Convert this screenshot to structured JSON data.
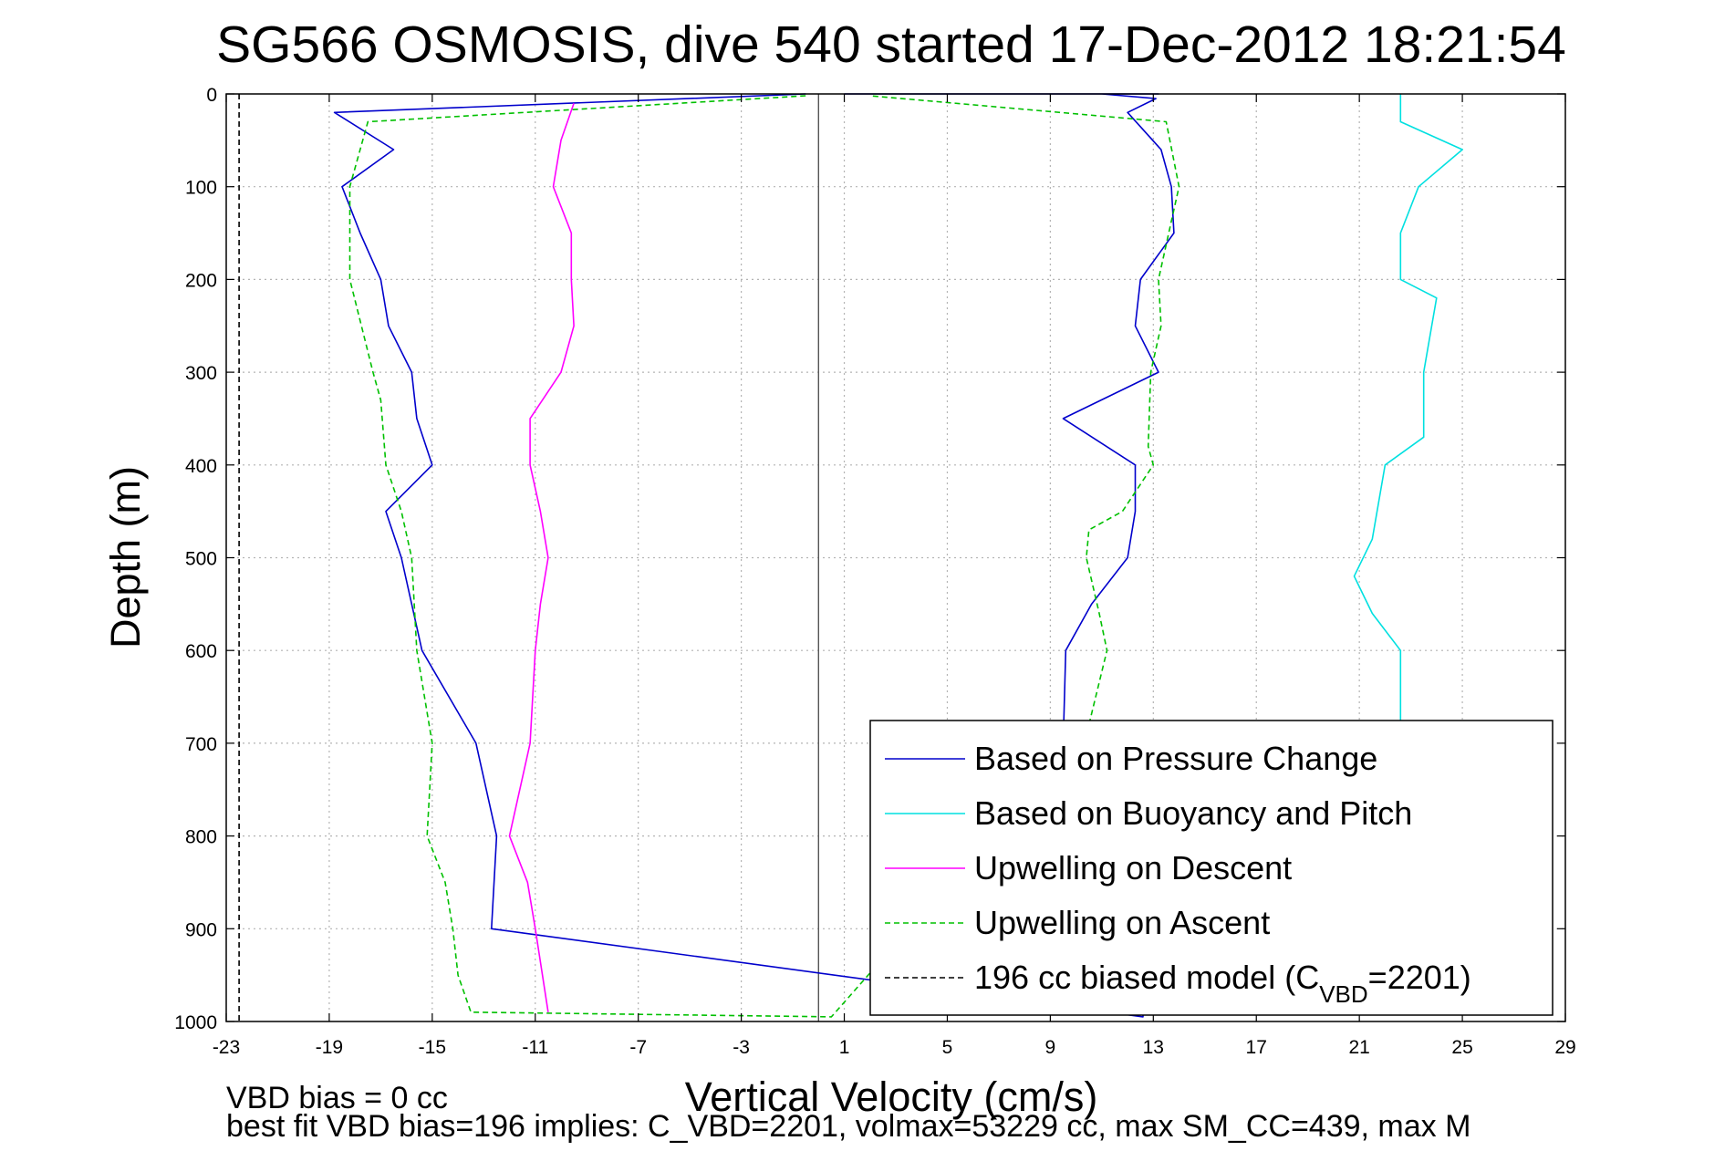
{
  "chart_data": {
    "type": "line",
    "title": "SG566 OSMOSIS, dive 540 started 17-Dec-2012 18:21:54",
    "xlabel": "Vertical Velocity (cm/s)",
    "ylabel": "Depth (m)",
    "xlim": [
      -23,
      29
    ],
    "ylim": [
      0,
      1000
    ],
    "y_reversed": true,
    "grid": true,
    "xticks": [
      "-23",
      "-19",
      "-15",
      "-11",
      "-7",
      "-3",
      "1",
      "5",
      "9",
      "13",
      "17",
      "21",
      "25",
      "29"
    ],
    "yticks": [
      "0",
      "100",
      "200",
      "300",
      "400",
      "500",
      "600",
      "700",
      "800",
      "900",
      "1000"
    ],
    "legend_position": "bottom-right",
    "series": [
      {
        "name": "Based on Pressure Change",
        "color": "#0000cc",
        "style": "solid",
        "x": [
          -0.5,
          -18.8,
          -16.5,
          -18.5,
          -17.8,
          -17.0,
          -16.7,
          -15.8,
          -15.6,
          -15.0,
          -16.8,
          -16.2,
          -15.4,
          -13.3,
          -12.5,
          -12.7,
          12.6,
          12.6,
          11.2,
          9.5,
          9.6,
          10.6,
          12.0,
          12.3,
          12.3,
          9.5,
          13.2,
          12.3,
          12.5,
          13.8,
          13.7,
          13.3,
          12.0,
          13.1,
          11.0,
          13.2,
          12.4,
          12.0,
          1.0
        ],
        "y": [
          0,
          20,
          60,
          100,
          150,
          200,
          250,
          300,
          350,
          400,
          450,
          500,
          600,
          700,
          800,
          900,
          995,
          900,
          800,
          700,
          600,
          550,
          500,
          450,
          400,
          350,
          300,
          250,
          200,
          150,
          100,
          60,
          20,
          5,
          0,
          0,
          0,
          0,
          0
        ]
      },
      {
        "name": "Based on Buoyancy and Pitch",
        "color": "#00e0e0",
        "style": "solid",
        "x": [
          22.6,
          22.6,
          25.0,
          23.3,
          22.6,
          22.6,
          24.0,
          23.5,
          23.5,
          22.0,
          21.5,
          20.8,
          21.5,
          22.6,
          22.6,
          22.6
        ],
        "y": [
          0,
          30,
          60,
          100,
          150,
          200,
          220,
          300,
          370,
          400,
          480,
          520,
          560,
          600,
          660,
          680
        ]
      },
      {
        "name": "Upwelling on Descent",
        "color": "#ff00ff",
        "style": "solid",
        "x": [
          -9.5,
          -10.0,
          -10.3,
          -9.6,
          -9.6,
          -9.5,
          -10.0,
          -11.2,
          -11.2,
          -10.8,
          -10.5,
          -10.8,
          -11.0,
          -11.2,
          -12.0,
          -11.3,
          -11.0,
          -10.5
        ],
        "y": [
          10,
          50,
          100,
          150,
          200,
          250,
          300,
          350,
          400,
          450,
          500,
          550,
          600,
          700,
          800,
          850,
          900,
          990
        ]
      },
      {
        "name": "Upwelling on Ascent",
        "color": "#00c000",
        "style": "dashed",
        "x": [
          -0.5,
          -17.5,
          -18.2,
          -18.2,
          -17.3,
          -17.0,
          -16.8,
          -16.2,
          -15.8,
          -15.6,
          -15.0,
          -15.2,
          -14.5,
          -14.2,
          -14.0,
          -13.5,
          0.5,
          10.5,
          11.2,
          10.9,
          10.4,
          10.5,
          11.8,
          13.0,
          12.8,
          12.9,
          13.3,
          13.2,
          13.6,
          14.0,
          13.5,
          2.0
        ],
        "y": [
          2,
          30,
          100,
          200,
          300,
          330,
          400,
          450,
          500,
          600,
          700,
          800,
          850,
          900,
          950,
          990,
          995,
          680,
          600,
          560,
          500,
          470,
          450,
          400,
          380,
          300,
          250,
          200,
          150,
          100,
          30,
          2
        ]
      },
      {
        "name": "196 cc biased model (C<sub>VBD</sub>=2201)",
        "color": "#000000",
        "style": "dashed",
        "x": [
          -22.5,
          -22.5
        ],
        "y": [
          0,
          1000
        ]
      }
    ],
    "footer": [
      "VBD bias = 0 cc",
      "best fit VBD bias=196 implies: C_VBD=2201, volmax=53229 cc, max SM_CC=439, max M"
    ]
  },
  "legend_entries": [
    {
      "label": "Based on Pressure Change",
      "color": "#0000cc",
      "dash": false
    },
    {
      "label": "Based on Buoyancy and Pitch",
      "color": "#00e0e0",
      "dash": false
    },
    {
      "label": "Upwelling on Descent",
      "color": "#ff00ff",
      "dash": false
    },
    {
      "label": "Upwelling on Ascent",
      "color": "#00c000",
      "dash": true
    },
    {
      "label": "196 cc biased model (C",
      "sub": "VBD",
      "suffix": "=2201)",
      "color": "#000000",
      "dash": true
    }
  ]
}
